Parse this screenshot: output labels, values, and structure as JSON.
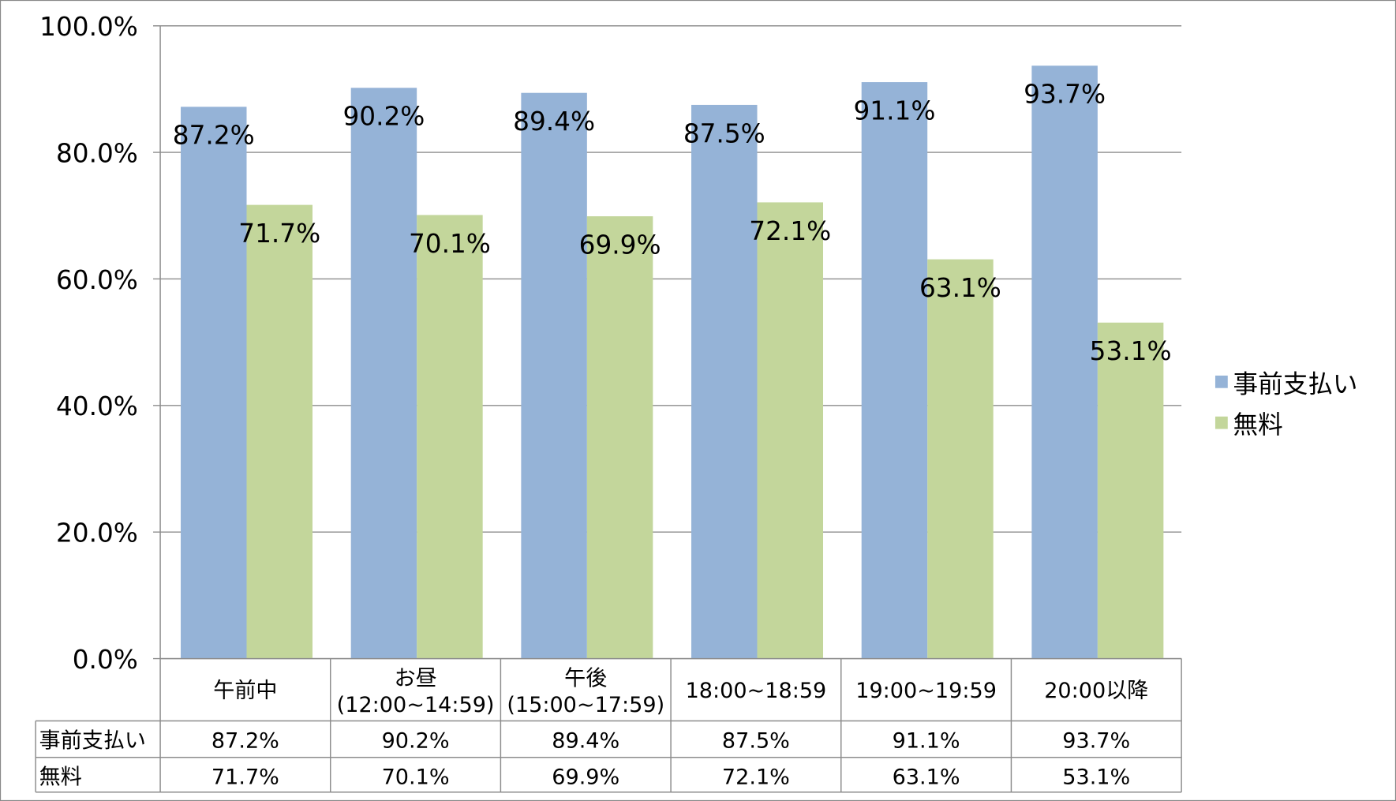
{
  "chart_data": {
    "type": "bar",
    "title": "",
    "xlabel": "",
    "ylabel": "",
    "ylim": [
      0,
      100
    ],
    "yticks": [
      "0.0%",
      "20.0%",
      "40.0%",
      "60.0%",
      "80.0%",
      "100.0%"
    ],
    "grid": true,
    "legend_position": "right",
    "categories": [
      {
        "line1": "午前中",
        "line2": ""
      },
      {
        "line1": "お昼",
        "line2": "(12:00~14:59)"
      },
      {
        "line1": "午後",
        "line2": "(15:00~17:59)"
      },
      {
        "line1": "18:00~18:59",
        "line2": ""
      },
      {
        "line1": "19:00~19:59",
        "line2": ""
      },
      {
        "line1": "20:00以降",
        "line2": ""
      }
    ],
    "series": [
      {
        "name": "事前支払い",
        "color": "#95b3d7",
        "values": [
          87.2,
          90.2,
          89.4,
          87.5,
          91.1,
          93.7
        ]
      },
      {
        "name": "無料",
        "color": "#c3d69b",
        "values": [
          71.7,
          70.1,
          69.9,
          72.1,
          63.1,
          53.1
        ]
      }
    ],
    "value_format": "percent_1dp",
    "data_table": true
  }
}
